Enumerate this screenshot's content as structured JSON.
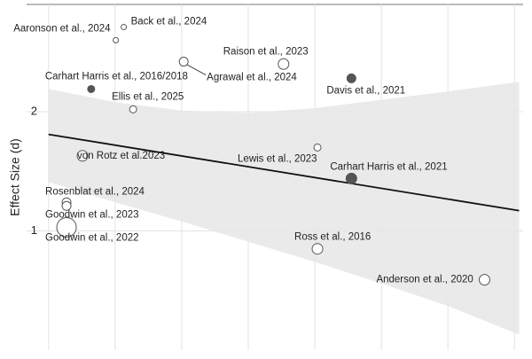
{
  "chart_data": {
    "type": "scatter",
    "y_label": "Effect Size (d)",
    "xlim": [
      -0.33,
      7.13
    ],
    "xticks": [
      0,
      1,
      2,
      3,
      4,
      5,
      6,
      7
    ],
    "ylim": [
      0,
      2.9
    ],
    "yticks": [
      1,
      2
    ],
    "grid": true,
    "color": "#555555",
    "labels": [
      "Back et al., 2024",
      "Aaronson et al., 2024",
      "Agrawal et al., 2024",
      "Raison et al., 2023",
      "Davis et al., 2021",
      "Carhart Harris et al., 2016/2018",
      "Ellis et al., 2025",
      "von Rotz et al.2023",
      "Lewis et al., 2023",
      "Carhart Harris et al., 2021",
      "Rosenblat et al., 2024",
      "Goodwin et al., 2023",
      "Goodwin et al., 2022",
      "Ross et al., 2016",
      "Anderson et al., 2020"
    ],
    "x": [
      1.13,
      1.01,
      2.03,
      3.53,
      4.55,
      0.64,
      1.27,
      0.51,
      4.04,
      4.55,
      0.27,
      0.27,
      0.27,
      4.04,
      6.55
    ],
    "values": [
      2.71,
      2.6,
      2.42,
      2.4,
      2.28,
      2.19,
      2.02,
      1.63,
      1.7,
      1.44,
      1.24,
      1.21,
      1.03,
      0.85,
      0.59
    ],
    "sizes": [
      3,
      3,
      5,
      6,
      5,
      4,
      4,
      6,
      4,
      6,
      5,
      5,
      11,
      6,
      6
    ],
    "filled": [
      false,
      false,
      false,
      false,
      true,
      true,
      false,
      false,
      false,
      true,
      false,
      false,
      false,
      false,
      false
    ],
    "fit": {
      "x": [
        0,
        7.07
      ],
      "y": [
        1.81,
        1.17
      ],
      "color": "#111111"
    },
    "band": {
      "x": [
        0,
        1,
        2,
        3,
        4,
        5,
        6,
        7.07
      ],
      "upper": [
        2.19,
        2.08,
        2.01,
        1.99,
        2.03,
        2.1,
        2.17,
        2.25
      ],
      "lower": [
        1.41,
        1.24,
        1.08,
        0.91,
        0.74,
        0.56,
        0.37,
        0.13
      ],
      "color": "#e6e6e6"
    }
  }
}
